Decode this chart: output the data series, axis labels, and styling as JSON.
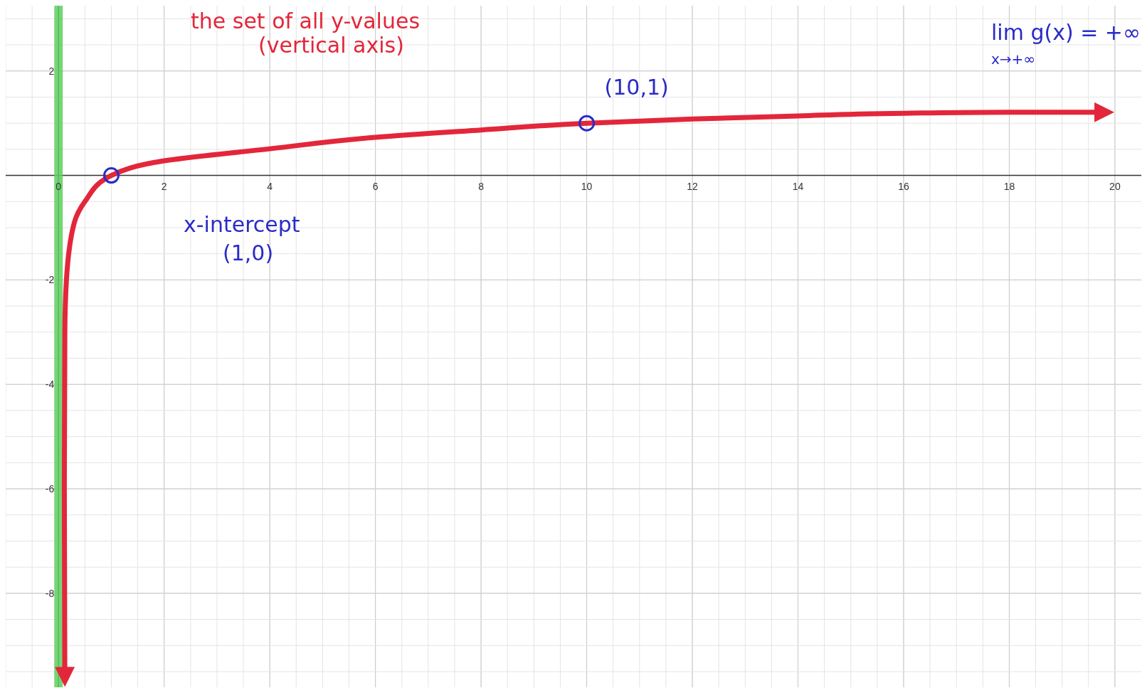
{
  "chart_data": {
    "type": "line",
    "xlim": [
      -1,
      20.5
    ],
    "ylim": [
      -9.8,
      3.25
    ],
    "xticks": [
      0,
      2,
      4,
      6,
      8,
      10,
      12,
      14,
      16,
      18,
      20
    ],
    "yticks": [
      -8,
      -6,
      -4,
      -2,
      2
    ],
    "grid": true,
    "series": [
      {
        "color": "#e3263a",
        "x": [
          0.12,
          0.11,
          0.12,
          0.15,
          0.3,
          0.5,
          1,
          2,
          4,
          6,
          8,
          10,
          12,
          14,
          16,
          18,
          19.8
        ],
        "values": [
          -9.6,
          -6,
          -3,
          -2,
          -0.9,
          -0.5,
          0,
          0.28,
          0.51,
          0.73,
          0.87,
          1,
          1.08,
          1.14,
          1.19,
          1.21,
          1.21
        ]
      },
      {
        "type": "scatter",
        "color": "#2b2bc8",
        "marker": "circle",
        "x": [
          1,
          10
        ],
        "values": [
          0,
          1
        ]
      }
    ],
    "ref_lines": [
      {
        "axis": "x",
        "value": 0,
        "color": "#5fd060"
      }
    ],
    "annotations": [
      {
        "text": "(10,1)",
        "x": 10,
        "y": 1
      },
      "x-intercept\n(1,0)",
      "the set of all y-values\n(vertical axis)",
      "lim g(x) = +∞\nx→+∞"
    ]
  }
}
